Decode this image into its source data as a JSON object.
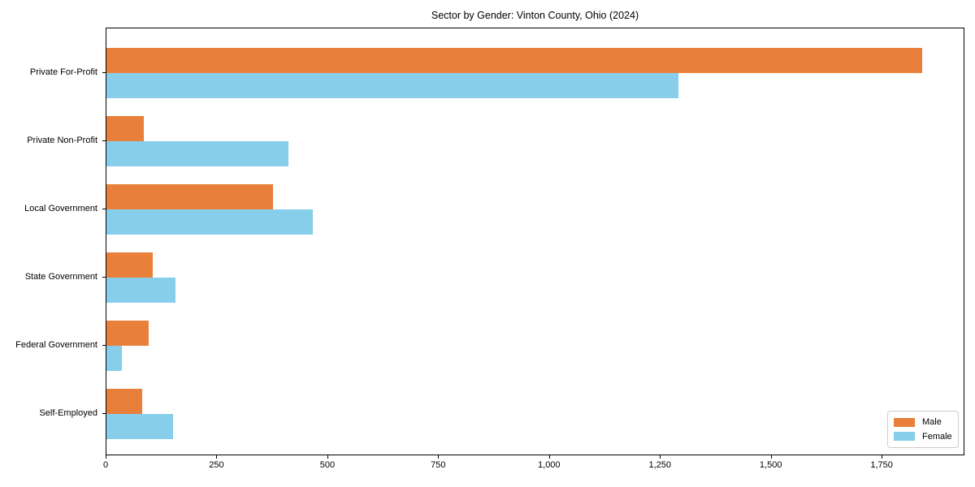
{
  "chart_data": {
    "type": "bar",
    "orientation": "horizontal",
    "title": "Sector by Gender: Vinton County, Ohio (2024)",
    "categories": [
      "Private For-Profit",
      "Private Non-Profit",
      "Local Government",
      "State Government",
      "Federal Government",
      "Self-Employed"
    ],
    "series": [
      {
        "name": "Male",
        "color": "#e8803c",
        "values": [
          1840,
          85,
          375,
          105,
          95,
          80
        ]
      },
      {
        "name": "Female",
        "color": "#87ceeb",
        "values": [
          1290,
          410,
          465,
          155,
          35,
          150
        ]
      }
    ],
    "xlim": [
      0,
      1933
    ],
    "xticks": [
      0,
      250,
      500,
      750,
      1000,
      1250,
      1500,
      1750
    ],
    "xtick_labels": [
      "0",
      "250",
      "500",
      "750",
      "1,000",
      "1,250",
      "1,500",
      "1,750"
    ],
    "grid": false,
    "legend": {
      "position": "lower right",
      "entries": [
        "Male",
        "Female"
      ]
    }
  }
}
